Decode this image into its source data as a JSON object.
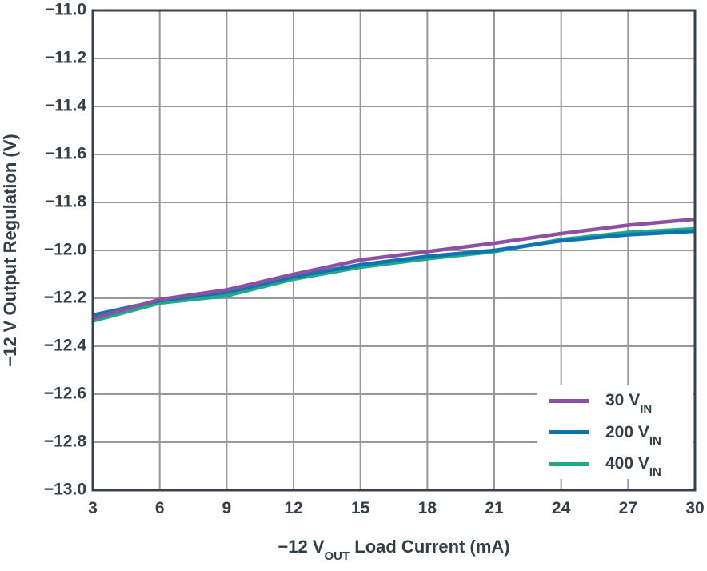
{
  "chart_data": {
    "type": "line",
    "title": "",
    "xlabel": {
      "pre": "−12 V",
      "sub": "OUT",
      "post": " Load Current (mA)"
    },
    "ylabel": "−12 V Output Regulation (V)",
    "xlim": [
      3,
      30
    ],
    "ylim": [
      -13.0,
      -11.0
    ],
    "xticks": [
      3,
      6,
      9,
      12,
      15,
      18,
      21,
      24,
      27,
      30
    ],
    "yticks": [
      -11.0,
      -11.2,
      -11.4,
      -11.6,
      -11.8,
      -12.0,
      -12.2,
      -12.4,
      -12.6,
      -12.8,
      -13.0
    ],
    "xtick_labels": [
      "3",
      "6",
      "9",
      "12",
      "15",
      "18",
      "21",
      "24",
      "27",
      "30"
    ],
    "ytick_labels": [
      "−11.0",
      "−11.2",
      "−11.4",
      "−11.6",
      "−11.8",
      "−12.0",
      "−12.2",
      "−12.4",
      "−12.6",
      "−12.8",
      "−13.0"
    ],
    "grid": true,
    "legend_position": "lower right",
    "x": [
      3,
      6,
      9,
      12,
      15,
      18,
      21,
      24,
      27,
      30
    ],
    "series": [
      {
        "name": "30 V_IN",
        "legend": {
          "pre": "30 V",
          "sub": "IN"
        },
        "color": "#8c51a0",
        "values": [
          -12.285,
          -12.205,
          -12.165,
          -12.1,
          -12.04,
          -12.005,
          -11.97,
          -11.93,
          -11.895,
          -11.87
        ]
      },
      {
        "name": "200 V_IN",
        "legend": {
          "pre": "200 V",
          "sub": "IN"
        },
        "color": "#0e73b5",
        "values": [
          -12.27,
          -12.21,
          -12.175,
          -12.11,
          -12.06,
          -12.025,
          -12.0,
          -11.96,
          -11.935,
          -11.92
        ]
      },
      {
        "name": "400 V_IN",
        "legend": {
          "pre": "400 V",
          "sub": "IN"
        },
        "color": "#20aa86",
        "values": [
          -12.295,
          -12.22,
          -12.19,
          -12.12,
          -12.07,
          -12.035,
          -12.005,
          -11.955,
          -11.925,
          -11.91
        ]
      }
    ],
    "colors": {
      "axis_text": "#333e48",
      "grid": "#97989c",
      "border": "#3a424f",
      "background": "#ffffff"
    }
  }
}
